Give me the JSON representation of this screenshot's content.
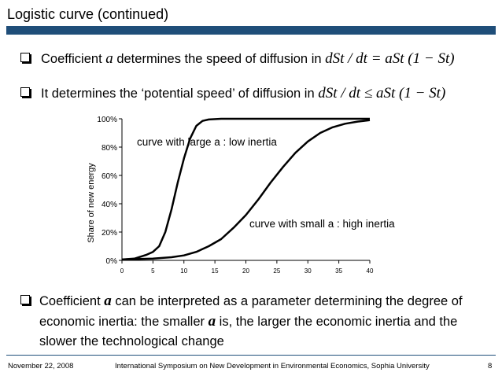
{
  "slide": {
    "title": "Logistic curve (continued)",
    "bullet1": {
      "pre": "Coefficient ",
      "var": "a",
      "post": " determines the speed of diffusion in ",
      "formula": "dSt / dt = aSt (1 − St)"
    },
    "bullet2": {
      "text": "It determines the ‘potential speed’ of diffusion in ",
      "formula": "dSt / dt ≤ aSt (1 − St)"
    },
    "bullet3": {
      "pre": "Coefficient ",
      "var": "a",
      "mid": " can be interpreted as a parameter determining the degree of economic inertia: the smaller ",
      "var2": "a",
      "post": " is, the larger the economic inertia and the slower the technological change"
    }
  },
  "chart_data": {
    "type": "line",
    "ylabel": "Share of new energy",
    "xlabel": "",
    "xlim": [
      0,
      40
    ],
    "ylim": [
      0,
      1
    ],
    "x_ticks": [
      "0",
      "5",
      "10",
      "15",
      "20",
      "25",
      "30",
      "35",
      "40"
    ],
    "y_ticks": [
      "0%",
      "20%",
      "40%",
      "60%",
      "80%",
      "100%"
    ],
    "series": [
      {
        "annotation": "curve with large a : low inertia",
        "points": [
          [
            0,
            0.006
          ],
          [
            2,
            0.012
          ],
          [
            4,
            0.04
          ],
          [
            5,
            0.06
          ],
          [
            6,
            0.1
          ],
          [
            7,
            0.2
          ],
          [
            8,
            0.36
          ],
          [
            9,
            0.55
          ],
          [
            10,
            0.72
          ],
          [
            11,
            0.86
          ],
          [
            12,
            0.95
          ],
          [
            13,
            0.985
          ],
          [
            14,
            0.995
          ],
          [
            16,
            1.0
          ],
          [
            40,
            1.0
          ]
        ]
      },
      {
        "annotation": "curve with small a : high inertia",
        "points": [
          [
            0,
            0.006
          ],
          [
            5,
            0.012
          ],
          [
            8,
            0.022
          ],
          [
            10,
            0.035
          ],
          [
            12,
            0.06
          ],
          [
            14,
            0.1
          ],
          [
            16,
            0.15
          ],
          [
            18,
            0.23
          ],
          [
            20,
            0.32
          ],
          [
            22,
            0.43
          ],
          [
            24,
            0.55
          ],
          [
            26,
            0.66
          ],
          [
            28,
            0.76
          ],
          [
            30,
            0.84
          ],
          [
            32,
            0.9
          ],
          [
            34,
            0.94
          ],
          [
            36,
            0.965
          ],
          [
            38,
            0.98
          ],
          [
            40,
            0.99
          ]
        ]
      }
    ]
  },
  "footer": {
    "date": "November 22, 2008",
    "venue": "International Symposium on New Development in Environmental Economics, Sophia University",
    "page": "8"
  }
}
